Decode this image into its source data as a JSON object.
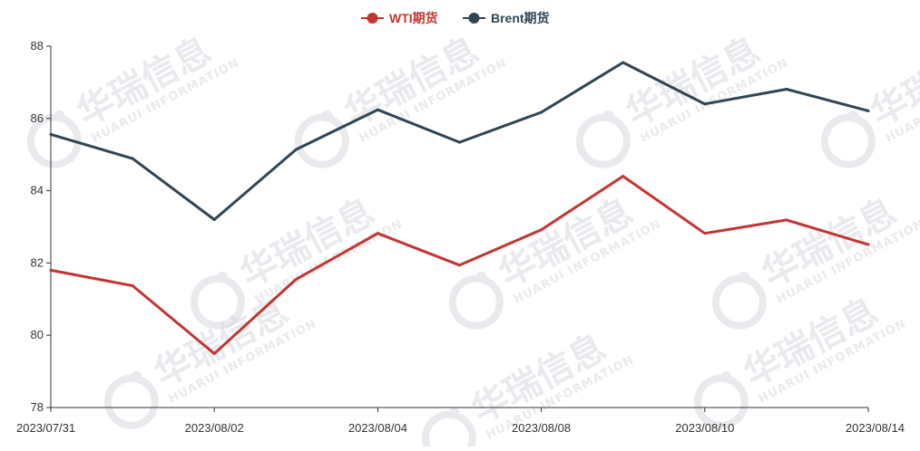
{
  "watermark": {
    "text_cn": "华瑞信息",
    "text_en": "HUARUI INFORMATION",
    "color": "#d6d9e0"
  },
  "chart_data": {
    "type": "line",
    "title": "",
    "xlabel": "",
    "ylabel": "",
    "x": [
      "2023/07/31",
      "2023/08/01",
      "2023/08/02",
      "2023/08/03",
      "2023/08/04",
      "2023/08/07",
      "2023/08/08",
      "2023/08/09",
      "2023/08/10",
      "2023/08/11",
      "2023/08/14"
    ],
    "x_tick_labels": [
      "2023/07/31",
      "2023/08/02",
      "2023/08/04",
      "2023/08/08",
      "2023/08/10",
      "2023/08/14"
    ],
    "y_ticks": [
      78,
      80,
      82,
      84,
      86,
      88
    ],
    "ylim": [
      78,
      88
    ],
    "grid": false,
    "legend_position": "top-center",
    "series": [
      {
        "name": "WTI期货",
        "color": "#c23531",
        "values": [
          81.8,
          81.37,
          79.49,
          81.55,
          82.82,
          81.94,
          82.92,
          84.4,
          82.82,
          83.19,
          82.51
        ]
      },
      {
        "name": "Brent期货",
        "color": "#2f4554",
        "values": [
          85.56,
          84.89,
          83.2,
          85.14,
          86.24,
          85.34,
          86.17,
          87.55,
          86.4,
          86.81,
          86.21
        ]
      }
    ]
  }
}
